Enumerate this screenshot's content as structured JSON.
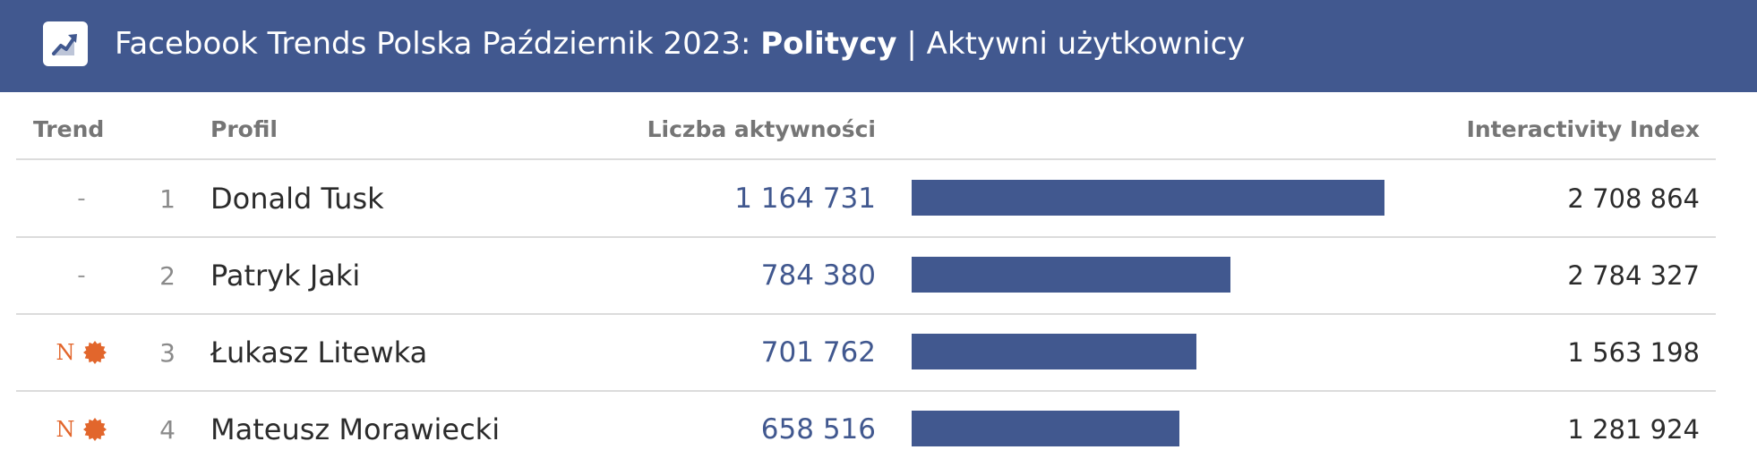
{
  "header": {
    "title_prefix": "Facebook Trends Polska Październik 2023: ",
    "title_bold": "Politycy",
    "title_suffix": " | Aktywni użytkownicy",
    "logo_icon": "trend-up-chart-icon",
    "background": "#41588f"
  },
  "columns": {
    "trend": "Trend",
    "profile": "Profil",
    "activity": "Liczba aktywności",
    "index": "Interactivity Index"
  },
  "rows": [
    {
      "trend": "-",
      "trend_new": false,
      "rank": "1",
      "name": "Donald Tusk",
      "activity_label": "1 164 731",
      "index_label": "2 708 864"
    },
    {
      "trend": "-",
      "trend_new": false,
      "rank": "2",
      "name": "Patryk Jaki",
      "activity_label": "784 380",
      "index_label": "2 784 327"
    },
    {
      "trend": "N",
      "trend_new": true,
      "rank": "3",
      "name": "Łukasz Litewka",
      "activity_label": "701 762",
      "index_label": "1 563 198"
    },
    {
      "trend": "N",
      "trend_new": true,
      "rank": "4",
      "name": "Mateusz Morawiecki",
      "activity_label": "658 516",
      "index_label": "1 281 924"
    }
  ],
  "colors": {
    "bar": "#41588f",
    "new_badge": "#e2662c"
  },
  "chart_data": {
    "type": "bar",
    "orientation": "horizontal",
    "categories": [
      "Donald Tusk",
      "Patryk Jaki",
      "Łukasz Litewka",
      "Mateusz Morawiecki"
    ],
    "series": [
      {
        "name": "Liczba aktywności",
        "values": [
          1164731,
          784380,
          701762,
          658516
        ]
      }
    ],
    "xlim": [
      0,
      1164731
    ],
    "secondary_values": {
      "Interactivity Index": [
        2708864,
        2784327,
        1563198,
        1281924
      ]
    }
  }
}
